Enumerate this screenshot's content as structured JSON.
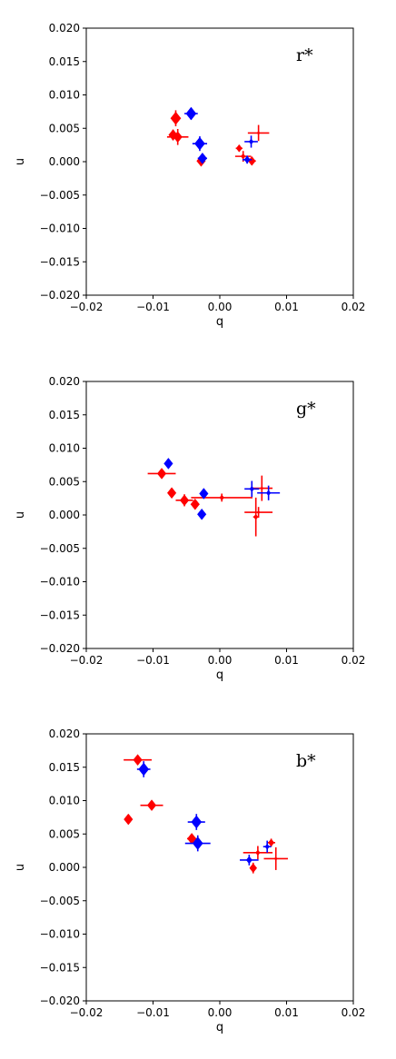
{
  "chart_data": [
    {
      "type": "scatter",
      "panel_label": "r*",
      "xlabel": "q",
      "ylabel": "u",
      "xlim": [
        -0.02,
        0.02
      ],
      "ylim": [
        -0.02,
        0.02
      ],
      "x_ticks": [
        -0.02,
        -0.01,
        0.0,
        0.01,
        0.02
      ],
      "x_tick_labels": [
        "−0.02",
        "−0.01",
        "0.00",
        "0.01",
        "0.02"
      ],
      "y_ticks": [
        0.02,
        0.015,
        0.01,
        0.005,
        0.0,
        -0.005,
        -0.01,
        -0.015,
        -0.02
      ],
      "y_tick_labels": [
        "0.020",
        "0.015",
        "0.010",
        "0.005",
        "0.000",
        "−0.005",
        "−0.010",
        "−0.015",
        "−0.020"
      ],
      "grid": false,
      "series": [
        {
          "color": "#ff0000",
          "points": [
            {
              "x": -0.0066,
              "y": 0.0065,
              "xerr": 0.0006,
              "yerr": 0.0012,
              "size": 7
            },
            {
              "x": -0.007,
              "y": 0.004,
              "xerr": 0.0006,
              "yerr": 0.0008,
              "size": 6
            },
            {
              "x": -0.0063,
              "y": 0.0037,
              "xerr": 0.0016,
              "yerr": 0.0012,
              "size": 6
            },
            {
              "x": -0.0028,
              "y": 0.0001,
              "xerr": 0.0003,
              "yerr": 0.0004,
              "size": 6
            },
            {
              "x": 0.0058,
              "y": 0.0043,
              "xerr": 0.0016,
              "yerr": 0.0012,
              "size": 2
            },
            {
              "x": 0.0029,
              "y": 0.002,
              "xerr": 0.0005,
              "yerr": 0.0005,
              "size": 4
            },
            {
              "x": 0.0035,
              "y": 0.0008,
              "xerr": 0.0012,
              "yerr": 0.0008,
              "size": 3
            },
            {
              "x": 0.0048,
              "y": 0.0001,
              "xerr": 0.0006,
              "yerr": 0.0005,
              "size": 5
            }
          ]
        },
        {
          "color": "#0000ff",
          "points": [
            {
              "x": -0.0043,
              "y": 0.0072,
              "xerr": 0.001,
              "yerr": 0.0009,
              "size": 7
            },
            {
              "x": -0.003,
              "y": 0.0027,
              "xerr": 0.0011,
              "yerr": 0.0011,
              "size": 7
            },
            {
              "x": -0.0026,
              "y": 0.0005,
              "xerr": 0.0007,
              "yerr": 0.0006,
              "size": 6
            },
            {
              "x": 0.0047,
              "y": 0.003,
              "xerr": 0.001,
              "yerr": 0.0009,
              "size": 3
            },
            {
              "x": 0.0041,
              "y": 0.0003,
              "xerr": 0.0007,
              "yerr": 0.0006,
              "size": 4
            }
          ]
        }
      ]
    },
    {
      "type": "scatter",
      "panel_label": "g*",
      "xlabel": "q",
      "ylabel": "u",
      "xlim": [
        -0.02,
        0.02
      ],
      "ylim": [
        -0.02,
        0.02
      ],
      "x_ticks": [
        -0.02,
        -0.01,
        0.0,
        0.01,
        0.02
      ],
      "x_tick_labels": [
        "−0.02",
        "−0.01",
        "0.00",
        "0.01",
        "0.02"
      ],
      "y_ticks": [
        0.02,
        0.015,
        0.01,
        0.005,
        0.0,
        -0.005,
        -0.01,
        -0.015,
        -0.02
      ],
      "y_tick_labels": [
        "0.020",
        "0.015",
        "0.010",
        "0.005",
        "0.000",
        "−0.005",
        "−0.010",
        "−0.015",
        "−0.020"
      ],
      "grid": false,
      "series": [
        {
          "color": "#ff0000",
          "points": [
            {
              "x": -0.0087,
              "y": 0.0062,
              "xerr": 0.0021,
              "yerr": 0.0005,
              "size": 6
            },
            {
              "x": -0.0072,
              "y": 0.0033,
              "xerr": 0.0005,
              "yerr": 0.0005,
              "size": 6
            },
            {
              "x": -0.0053,
              "y": 0.0022,
              "xerr": 0.0013,
              "yerr": 0.0009,
              "size": 6
            },
            {
              "x": -0.0037,
              "y": 0.0016,
              "xerr": 0.0006,
              "yerr": 0.0006,
              "size": 6
            },
            {
              "x": 0.0003,
              "y": 0.0026,
              "xerr": 0.0046,
              "yerr": 0.0006,
              "size": 3
            },
            {
              "x": 0.0063,
              "y": 0.004,
              "xerr": 0.0016,
              "yerr": 0.0019,
              "size": 2
            },
            {
              "x": 0.0058,
              "y": 0.0004,
              "xerr": 0.0021,
              "yerr": 0.0008,
              "size": 2
            },
            {
              "x": 0.0054,
              "y": -0.0003,
              "xerr": 0.0004,
              "yerr": 0.0029,
              "size": 3
            }
          ]
        },
        {
          "color": "#0000ff",
          "points": [
            {
              "x": -0.0077,
              "y": 0.0077,
              "xerr": 0.0003,
              "yerr": 0.0004,
              "size": 6
            },
            {
              "x": -0.0024,
              "y": 0.0032,
              "xerr": 0.0004,
              "yerr": 0.0006,
              "size": 6
            },
            {
              "x": -0.0027,
              "y": 0.0001,
              "xerr": 0.0003,
              "yerr": 0.0003,
              "size": 6
            },
            {
              "x": 0.0048,
              "y": 0.0039,
              "xerr": 0.0011,
              "yerr": 0.0012,
              "size": 3
            },
            {
              "x": 0.0073,
              "y": 0.0033,
              "xerr": 0.0017,
              "yerr": 0.0011,
              "size": 3
            }
          ]
        }
      ]
    },
    {
      "type": "scatter",
      "panel_label": "b*",
      "xlabel": "q",
      "ylabel": "u",
      "xlim": [
        -0.02,
        0.02
      ],
      "ylim": [
        -0.02,
        0.02
      ],
      "x_ticks": [
        -0.02,
        -0.01,
        0.0,
        0.01,
        0.02
      ],
      "x_tick_labels": [
        "−0.02",
        "−0.01",
        "0.00",
        "0.01",
        "0.02"
      ],
      "y_ticks": [
        0.02,
        0.015,
        0.01,
        0.005,
        0.0,
        -0.005,
        -0.01,
        -0.015,
        -0.02
      ],
      "y_tick_labels": [
        "0.020",
        "0.015",
        "0.010",
        "0.005",
        "0.000",
        "−0.005",
        "−0.010",
        "−0.015",
        "−0.020"
      ],
      "grid": false,
      "series": [
        {
          "color": "#ff0000",
          "points": [
            {
              "x": -0.0123,
              "y": 0.0161,
              "xerr": 0.0021,
              "yerr": 0.0005,
              "size": 6
            },
            {
              "x": -0.0102,
              "y": 0.0093,
              "xerr": 0.0017,
              "yerr": 0.0006,
              "size": 6
            },
            {
              "x": -0.0137,
              "y": 0.0072,
              "xerr": 0.0003,
              "yerr": 0.0004,
              "size": 6
            },
            {
              "x": -0.0042,
              "y": 0.0043,
              "xerr": 0.0007,
              "yerr": 0.0006,
              "size": 6
            },
            {
              "x": 0.0077,
              "y": 0.0037,
              "xerr": 0.0006,
              "yerr": 0.0006,
              "size": 4
            },
            {
              "x": 0.0057,
              "y": 0.0022,
              "xerr": 0.0022,
              "yerr": 0.001,
              "size": 3
            },
            {
              "x": 0.0084,
              "y": 0.0013,
              "xerr": 0.0018,
              "yerr": 0.0017,
              "size": 2
            },
            {
              "x": 0.005,
              "y": -0.0001,
              "xerr": 0.0003,
              "yerr": 0.0008,
              "size": 5
            }
          ]
        },
        {
          "color": "#0000ff",
          "points": [
            {
              "x": -0.0114,
              "y": 0.0147,
              "xerr": 0.001,
              "yerr": 0.0012,
              "size": 7
            },
            {
              "x": -0.0035,
              "y": 0.0068,
              "xerr": 0.0013,
              "yerr": 0.0012,
              "size": 7
            },
            {
              "x": -0.0033,
              "y": 0.0036,
              "xerr": 0.0019,
              "yerr": 0.0012,
              "size": 7
            },
            {
              "x": 0.0044,
              "y": 0.0011,
              "xerr": 0.0014,
              "yerr": 0.0008,
              "size": 4
            },
            {
              "x": 0.0071,
              "y": 0.0031,
              "xerr": 0.0006,
              "yerr": 0.0009,
              "size": 3
            }
          ]
        }
      ]
    }
  ]
}
